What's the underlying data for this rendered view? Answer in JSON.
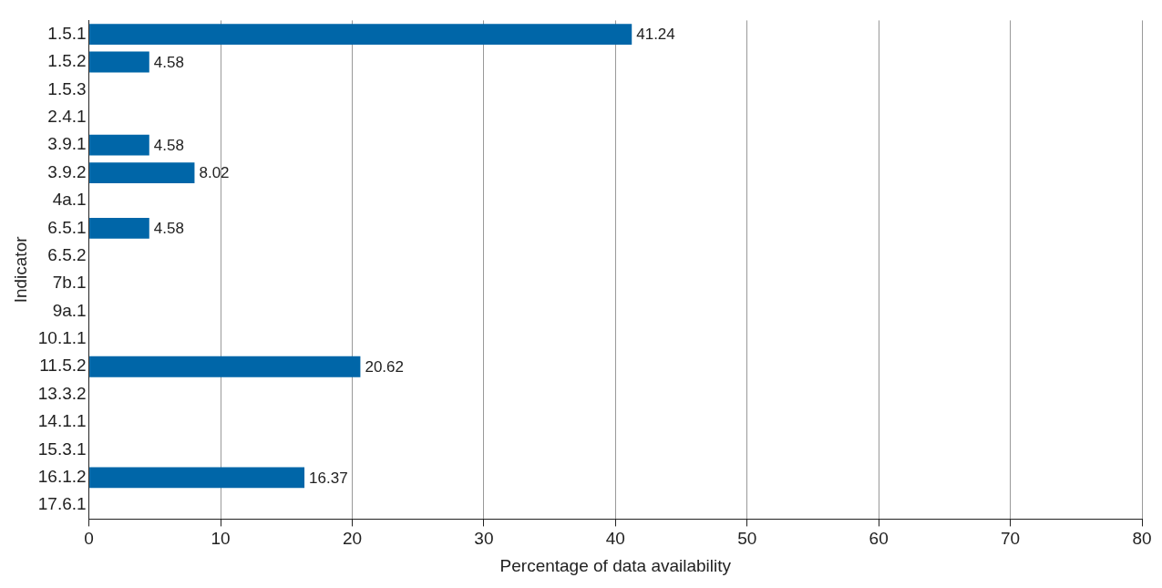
{
  "chart_data": {
    "type": "bar",
    "orientation": "horizontal",
    "xlabel": "Percentage of data availability",
    "ylabel": "Indicator",
    "categories": [
      "1.5.1",
      "1.5.2",
      "1.5.3",
      "2.4.1",
      "3.9.1",
      "3.9.2",
      "4a.1",
      "6.5.1",
      "6.5.2",
      "7b.1",
      "9a.1",
      "10.1.1",
      "11.5.2",
      "13.3.2",
      "14.1.1",
      "15.3.1",
      "16.1.2",
      "17.6.1"
    ],
    "values": [
      41.24,
      4.58,
      null,
      null,
      4.58,
      8.02,
      null,
      4.58,
      null,
      null,
      null,
      null,
      20.62,
      null,
      null,
      null,
      16.37,
      null
    ],
    "color": "#0066a8",
    "xlim": [
      0,
      80
    ],
    "xticks": [
      0,
      10,
      20,
      30,
      40,
      50,
      60,
      70,
      80
    ],
    "grid": "x",
    "data_labels": true,
    "legend": false
  }
}
